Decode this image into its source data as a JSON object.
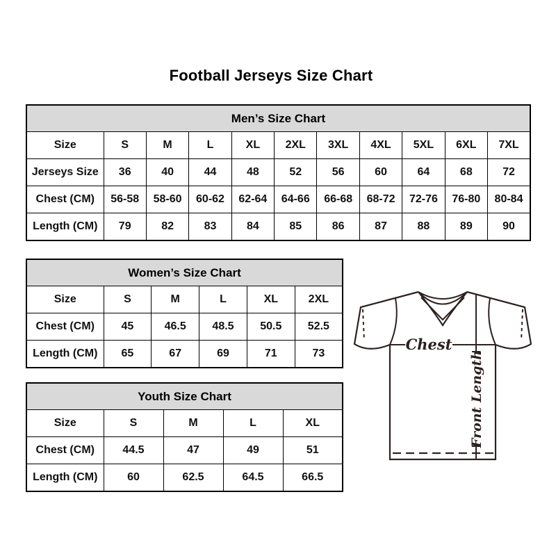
{
  "page": {
    "title": "Football Jerseys Size Chart"
  },
  "tables": {
    "men": {
      "header": "Men’s Size Chart",
      "rows": [
        [
          "Size",
          "S",
          "M",
          "L",
          "XL",
          "2XL",
          "3XL",
          "4XL",
          "5XL",
          "6XL",
          "7XL"
        ],
        [
          "Jerseys Size",
          "36",
          "40",
          "44",
          "48",
          "52",
          "56",
          "60",
          "64",
          "68",
          "72"
        ],
        [
          "Chest (CM)",
          "56-58",
          "58-60",
          "60-62",
          "62-64",
          "64-66",
          "66-68",
          "68-72",
          "72-76",
          "76-80",
          "80-84"
        ],
        [
          "Length (CM)",
          "79",
          "82",
          "83",
          "84",
          "85",
          "86",
          "87",
          "88",
          "89",
          "90"
        ]
      ]
    },
    "women": {
      "header": "Women’s Size Chart",
      "rows": [
        [
          "Size",
          "S",
          "M",
          "L",
          "XL",
          "2XL"
        ],
        [
          "Chest (CM)",
          "45",
          "46.5",
          "48.5",
          "50.5",
          "52.5"
        ],
        [
          "Length (CM)",
          "65",
          "67",
          "69",
          "71",
          "73"
        ]
      ]
    },
    "youth": {
      "header": "Youth Size Chart",
      "rows": [
        [
          "Size",
          "S",
          "M",
          "L",
          "XL"
        ],
        [
          "Chest (CM)",
          "44.5",
          "47",
          "49",
          "51"
        ],
        [
          "Length (CM)",
          "60",
          "62.5",
          "64.5",
          "66.5"
        ]
      ]
    }
  },
  "diagram": {
    "chest_label": "Chest",
    "front_length_label": "Front Length"
  },
  "colors": {
    "header_bg": "#d9d9d9",
    "table_border": "#000000",
    "text": "#111111",
    "diagram_stroke": "#2b2220"
  }
}
